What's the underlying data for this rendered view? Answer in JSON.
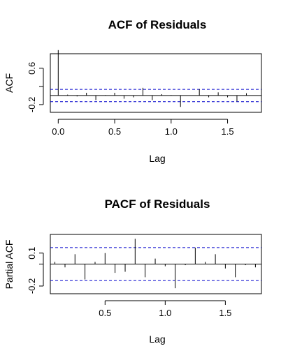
{
  "chart_data": [
    {
      "type": "bar",
      "title": "ACF of Residuals",
      "xlabel": "Lag",
      "ylabel": "ACF",
      "xlim": [
        -0.07,
        1.8
      ],
      "ylim": [
        -0.37,
        0.92
      ],
      "x_ticks": [
        0.0,
        0.5,
        1.0,
        1.5
      ],
      "x_tick_labels": [
        "0.0",
        "0.5",
        "1.0",
        "1.5"
      ],
      "y_ticks": [
        -0.2,
        0.2,
        0.6
      ],
      "y_tick_labels": [
        "-0.2",
        "",
        "0.6"
      ],
      "confidence_bounds": [
        0.135,
        -0.135
      ],
      "bounds_color": "#0000cc",
      "x": [
        0.0,
        0.083,
        0.167,
        0.25,
        0.333,
        0.417,
        0.5,
        0.583,
        0.667,
        0.75,
        0.833,
        0.917,
        1.0,
        1.083,
        1.167,
        1.25,
        1.333,
        1.417,
        1.5,
        1.583,
        1.667
      ],
      "values": [
        1.0,
        0.02,
        -0.02,
        0.06,
        -0.1,
        0.01,
        0.06,
        -0.07,
        -0.04,
        0.17,
        -0.1,
        0.03,
        0.01,
        -0.25,
        0.0,
        0.14,
        -0.04,
        0.07,
        -0.04,
        -0.13,
        0.05
      ]
    },
    {
      "type": "bar",
      "title": "PACF of Residuals",
      "xlabel": "Lag",
      "ylabel": "Partial ACF",
      "xlim": [
        0.045,
        1.8
      ],
      "ylim": [
        -0.27,
        0.27
      ],
      "x_ticks": [
        0.5,
        1.0,
        1.5
      ],
      "x_tick_labels": [
        "0.5",
        "1.0",
        "1.5"
      ],
      "y_ticks": [
        -0.2,
        0.0,
        0.1
      ],
      "y_tick_labels": [
        "-0.2",
        "",
        "0.1"
      ],
      "confidence_bounds": [
        0.15,
        -0.15
      ],
      "bounds_color": "#0000cc",
      "x": [
        0.083,
        0.167,
        0.25,
        0.333,
        0.417,
        0.5,
        0.583,
        0.667,
        0.75,
        0.833,
        0.917,
        1.0,
        1.083,
        1.167,
        1.25,
        1.333,
        1.417,
        1.5,
        1.583,
        1.667,
        1.75
      ],
      "values": [
        0.02,
        -0.03,
        0.09,
        -0.14,
        0.02,
        0.1,
        -0.08,
        -0.07,
        0.23,
        -0.12,
        0.05,
        -0.02,
        -0.22,
        -0.01,
        0.15,
        0.02,
        0.09,
        -0.04,
        -0.12,
        -0.01,
        -0.03
      ]
    }
  ]
}
